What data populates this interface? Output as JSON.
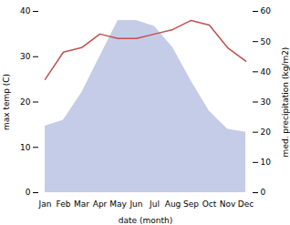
{
  "chart_data": {
    "type": "line",
    "categories": [
      "Jan",
      "Feb",
      "Mar",
      "Apr",
      "May",
      "Jun",
      "Jul",
      "Aug",
      "Sep",
      "Oct",
      "Nov",
      "Dec"
    ],
    "series": [
      {
        "type": "area",
        "axis": "y2",
        "color": "#c5cce8",
        "values": [
          22,
          24,
          33,
          45,
          57,
          57,
          55,
          48,
          37,
          27,
          21,
          20
        ]
      },
      {
        "type": "line",
        "color": "#c0504d",
        "values": [
          25,
          31,
          32,
          35,
          34,
          34,
          35,
          36,
          38,
          37,
          32,
          29
        ]
      }
    ],
    "xlabel": "date (month)",
    "ylabel": "max temp (C)",
    "y2label": "med. precipitation (kg/m2)",
    "ylim": [
      0,
      40
    ],
    "yticks": [
      0,
      10,
      20,
      30,
      40
    ],
    "y2lim": [
      0,
      60
    ],
    "y2ticks": [
      0,
      10,
      20,
      30,
      40,
      50,
      60
    ]
  }
}
